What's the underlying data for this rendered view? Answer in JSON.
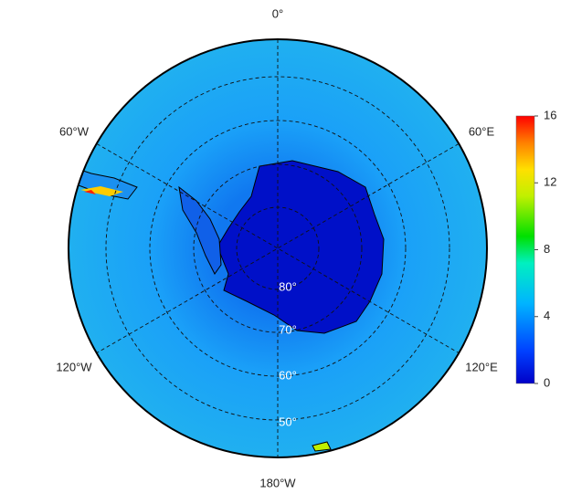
{
  "map": {
    "longitude_labels": [
      "0°",
      "60°E",
      "120°E",
      "180°W",
      "120°W",
      "60°W"
    ],
    "latitude_labels": [
      "80°",
      "70°",
      "60°",
      "50°"
    ],
    "colorbar": {
      "lim": [
        0,
        16
      ],
      "ticks": [
        0,
        4,
        8,
        12,
        16
      ]
    }
  }
}
